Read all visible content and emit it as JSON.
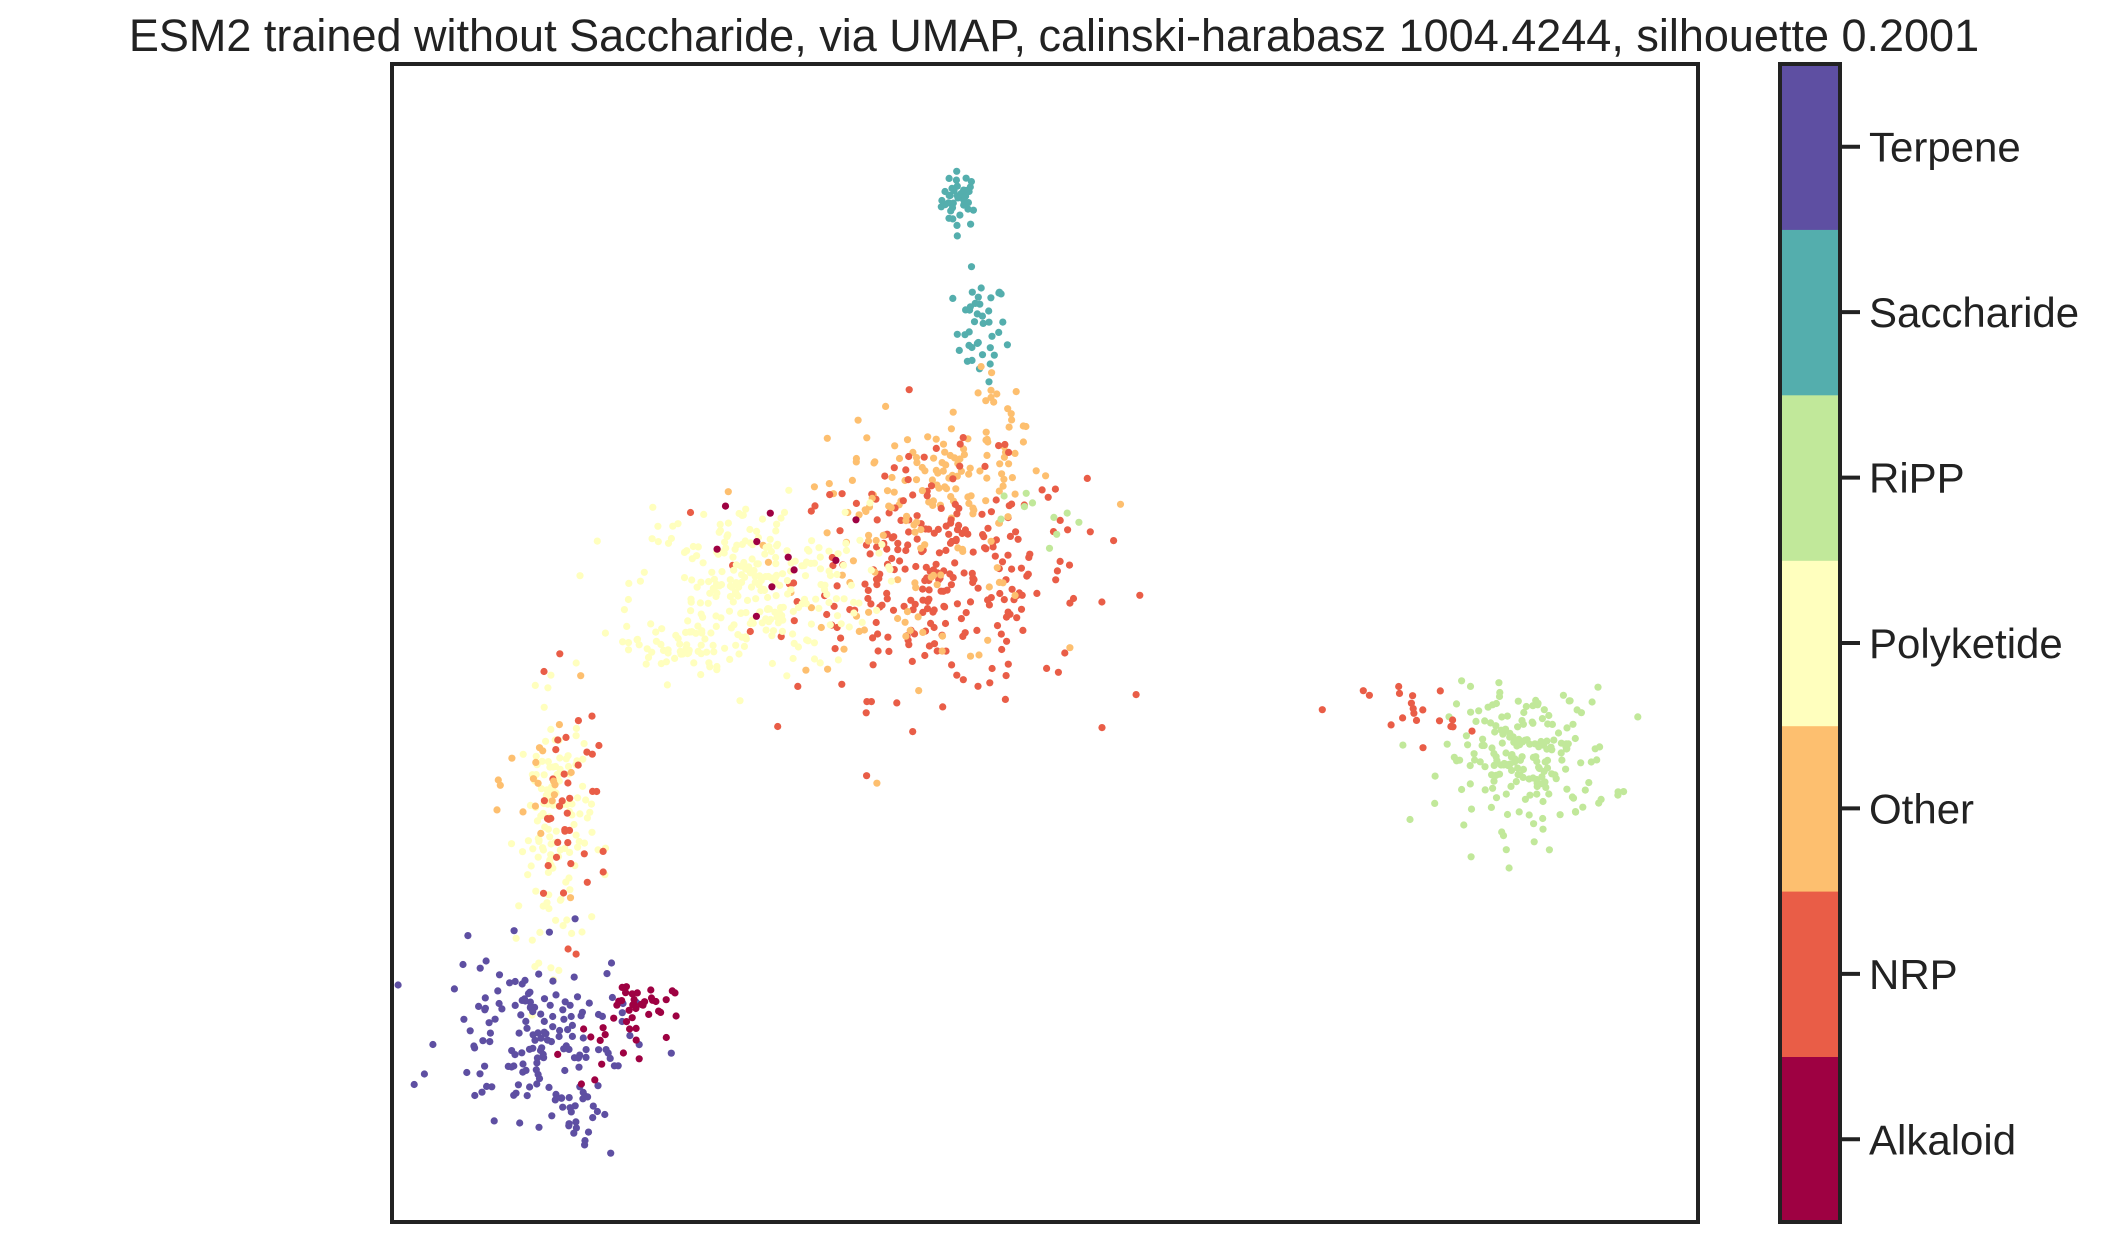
{
  "chart_data": {
    "type": "scatter",
    "title": "ESM2 trained without Saccharide, via UMAP, calinski-harabasz 1004.4244, silhouette 0.2001",
    "xlabel": "",
    "ylabel": "",
    "axis_ticks": false,
    "grid": false,
    "colorbar": {
      "placement": "right",
      "categories": [
        "Alkaloid",
        "NRP",
        "Other",
        "Polyketide",
        "RiPP",
        "Saccharide",
        "Terpene"
      ],
      "colors": [
        "#9e0142",
        "#e95d47",
        "#fdbf6f",
        "#ffffbe",
        "#c1e89a",
        "#54aead",
        "#5e4fa2"
      ]
    },
    "xlim": [
      0,
      100
    ],
    "ylim": [
      0,
      100
    ],
    "clusters": [
      {
        "category": "Saccharide",
        "cx": 43.5,
        "cy": 88.3,
        "sx": 0.7,
        "sy": 1.2,
        "n": 40
      },
      {
        "category": "Saccharide",
        "cx": 45.0,
        "cy": 77.0,
        "sx": 1.0,
        "sy": 2.2,
        "n": 40
      },
      {
        "category": "Other",
        "cx": 46.0,
        "cy": 70.0,
        "sx": 1.2,
        "sy": 2.0,
        "n": 15
      },
      {
        "category": "Other",
        "cx": 42.5,
        "cy": 65.0,
        "sx": 4.0,
        "sy": 2.5,
        "n": 80
      },
      {
        "category": "NRP",
        "cx": 42.0,
        "cy": 55.5,
        "sx": 5.5,
        "sy": 5.0,
        "n": 280
      },
      {
        "category": "Other",
        "cx": 40.0,
        "cy": 58.0,
        "sx": 5.0,
        "sy": 5.0,
        "n": 90
      },
      {
        "category": "Polyketide",
        "cx": 27.5,
        "cy": 55.0,
        "sx": 4.5,
        "sy": 3.5,
        "n": 260
      },
      {
        "category": "Polyketide",
        "cx": 22.0,
        "cy": 49.5,
        "sx": 2.0,
        "sy": 1.4,
        "n": 50
      },
      {
        "category": "Alkaloid",
        "cx": 30.0,
        "cy": 58.0,
        "sx": 4.0,
        "sy": 4.0,
        "n": 10
      },
      {
        "category": "RiPP",
        "cx": 50.0,
        "cy": 60.5,
        "sx": 1.5,
        "sy": 1.5,
        "n": 10
      },
      {
        "category": "RiPP",
        "cx": 87.0,
        "cy": 40.0,
        "sx": 3.2,
        "sy": 3.0,
        "n": 200
      },
      {
        "category": "NRP",
        "cx": 78.0,
        "cy": 44.0,
        "sx": 1.8,
        "sy": 1.5,
        "n": 20
      },
      {
        "category": "Polyketide",
        "cx": 12.5,
        "cy": 34.0,
        "sx": 1.4,
        "sy": 5.5,
        "n": 130
      },
      {
        "category": "NRP",
        "cx": 13.5,
        "cy": 35.5,
        "sx": 1.6,
        "sy": 5.0,
        "n": 40
      },
      {
        "category": "Other",
        "cx": 12.0,
        "cy": 38.0,
        "sx": 1.5,
        "sy": 4.0,
        "n": 20
      },
      {
        "category": "Terpene",
        "cx": 11.0,
        "cy": 16.0,
        "sx": 3.5,
        "sy": 3.5,
        "n": 150
      },
      {
        "category": "Terpene",
        "cx": 14.5,
        "cy": 10.5,
        "sx": 1.2,
        "sy": 2.5,
        "n": 25
      },
      {
        "category": "Alkaloid",
        "cx": 18.5,
        "cy": 18.5,
        "sx": 1.5,
        "sy": 1.2,
        "n": 35
      },
      {
        "category": "Alkaloid",
        "cx": 15.5,
        "cy": 14.5,
        "sx": 1.2,
        "sy": 1.5,
        "n": 10
      }
    ]
  }
}
